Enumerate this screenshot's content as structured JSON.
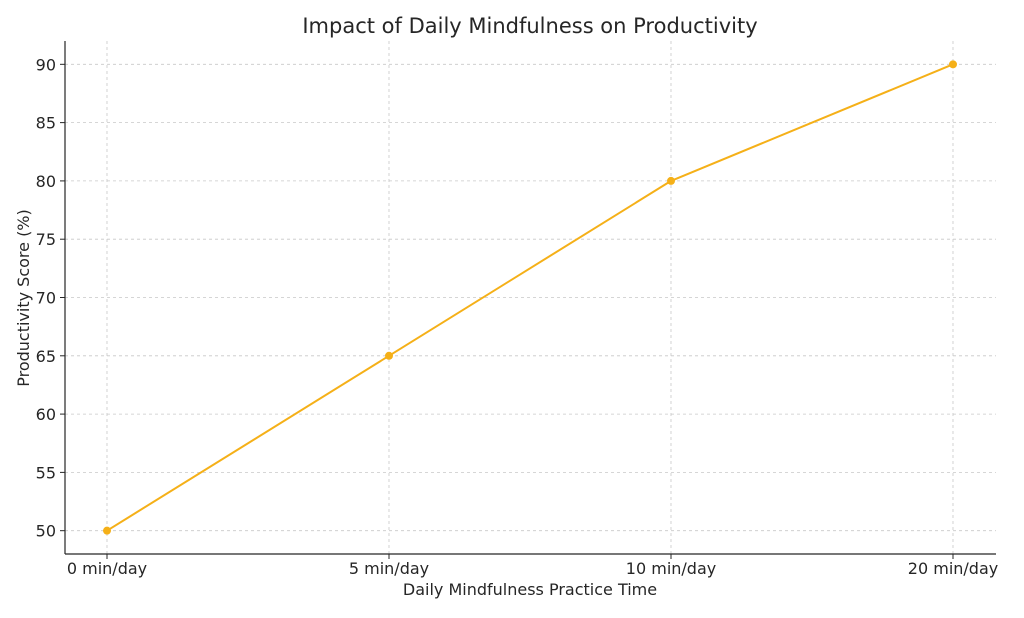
{
  "chart_data": {
    "type": "line",
    "title": "Impact of Daily Mindfulness on Productivity",
    "xlabel": "Daily Mindfulness Practice Time",
    "ylabel": "Productivity Score (%)",
    "categories": [
      "0 min/day",
      "5 min/day",
      "10 min/day",
      "20 min/day"
    ],
    "x": [
      0,
      5,
      10,
      20
    ],
    "series": [
      {
        "values": [
          50,
          65,
          80,
          90
        ],
        "color": "#f5b018"
      }
    ],
    "ylim": [
      48,
      92
    ],
    "yticks": [
      50,
      55,
      60,
      65,
      70,
      75,
      80,
      85,
      90
    ],
    "grid": true,
    "marker": "circle"
  }
}
